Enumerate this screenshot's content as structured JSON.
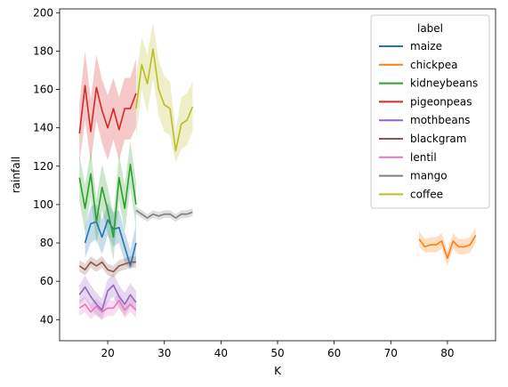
{
  "chart_data": {
    "type": "line",
    "xlabel": "K",
    "ylabel": "rainfall",
    "xlim": [
      11.5,
      88.5
    ],
    "ylim": [
      29,
      202
    ],
    "xticks": [
      20,
      30,
      40,
      50,
      60,
      70,
      80
    ],
    "yticks": [
      40,
      60,
      80,
      100,
      120,
      140,
      160,
      180,
      200
    ],
    "grid": false,
    "legend": {
      "title": "label",
      "placement": "top-right"
    },
    "series": [
      {
        "name": "maize",
        "color": "#1f77b4",
        "x": [
          16,
          17,
          18,
          19,
          20,
          21,
          22,
          23,
          24,
          25
        ],
        "y": [
          80,
          90,
          91,
          83,
          92,
          87,
          88,
          78,
          68,
          80
        ],
        "lo": [
          72,
          80,
          82,
          74,
          84,
          78,
          80,
          70,
          66,
          70
        ],
        "hi": [
          88,
          99,
          100,
          92,
          101,
          96,
          97,
          86,
          76,
          90
        ]
      },
      {
        "name": "chickpea",
        "color": "#ff7f0e",
        "x": [
          75,
          76,
          77,
          78,
          79,
          80,
          81,
          82,
          83,
          84,
          85
        ],
        "y": [
          82,
          78,
          79,
          79,
          81,
          72,
          81,
          78,
          78,
          79,
          84
        ],
        "lo": [
          78,
          75,
          75,
          75,
          77,
          68,
          77,
          74,
          74,
          75,
          80
        ],
        "hi": [
          86,
          82,
          83,
          83,
          85,
          76,
          85,
          82,
          82,
          83,
          88
        ]
      },
      {
        "name": "kidneybeans",
        "color": "#2ca02c",
        "x": [
          15,
          16,
          17,
          18,
          19,
          20,
          21,
          22,
          23,
          24,
          25
        ],
        "y": [
          114,
          98,
          116,
          91,
          109,
          97,
          83,
          114,
          98,
          121,
          100
        ],
        "lo": [
          102,
          86,
          104,
          79,
          97,
          85,
          71,
          102,
          86,
          109,
          88
        ],
        "hi": [
          126,
          110,
          128,
          103,
          121,
          109,
          95,
          126,
          110,
          133,
          112
        ]
      },
      {
        "name": "pigeonpeas",
        "color": "#d62728",
        "x": [
          15,
          16,
          17,
          18,
          19,
          20,
          21,
          22,
          23,
          24,
          25
        ],
        "y": [
          137,
          162,
          138,
          161,
          149,
          140,
          150,
          139,
          150,
          150,
          158
        ],
        "lo": [
          122,
          144,
          122,
          144,
          132,
          123,
          134,
          123,
          134,
          134,
          140
        ],
        "hi": [
          153,
          180,
          155,
          178,
          165,
          157,
          166,
          156,
          166,
          166,
          176
        ]
      },
      {
        "name": "mothbeans",
        "color": "#9467bd",
        "x": [
          15,
          16,
          17,
          18,
          19,
          20,
          21,
          22,
          23,
          24,
          25
        ],
        "y": [
          53,
          57,
          52,
          48,
          45,
          55,
          58,
          52,
          48,
          53,
          49
        ],
        "lo": [
          48,
          51,
          46,
          42,
          40,
          49,
          52,
          46,
          42,
          47,
          44
        ],
        "hi": [
          58,
          63,
          58,
          54,
          51,
          61,
          64,
          58,
          54,
          59,
          55
        ]
      },
      {
        "name": "blackgram",
        "color": "#8c564b",
        "x": [
          15,
          16,
          17,
          18,
          19,
          20,
          21,
          22,
          23,
          24,
          25
        ],
        "y": [
          68,
          66,
          70,
          68,
          70,
          66,
          65,
          68,
          69,
          70,
          70
        ],
        "lo": [
          65,
          63,
          67,
          65,
          67,
          63,
          62,
          65,
          66,
          67,
          67
        ],
        "hi": [
          71,
          69,
          73,
          71,
          73,
          69,
          68,
          71,
          72,
          73,
          73
        ]
      },
      {
        "name": "lentil",
        "color": "#e377c2",
        "x": [
          15,
          16,
          17,
          18,
          19,
          20,
          21,
          22,
          23,
          24,
          25
        ],
        "y": [
          46,
          48,
          44,
          47,
          44,
          46,
          46,
          50,
          45,
          48,
          45
        ],
        "lo": [
          42,
          44,
          40,
          43,
          40,
          42,
          42,
          46,
          41,
          44,
          41
        ],
        "hi": [
          50,
          52,
          48,
          51,
          48,
          50,
          50,
          54,
          49,
          52,
          49
        ]
      },
      {
        "name": "mango",
        "color": "#7f7f7f",
        "x": [
          25,
          26,
          27,
          28,
          29,
          30,
          31,
          32,
          33,
          34,
          35
        ],
        "y": [
          97,
          95,
          93,
          95,
          94,
          95,
          95,
          93,
          95,
          95,
          96
        ],
        "lo": [
          95,
          93,
          91,
          93,
          92,
          93,
          93,
          91,
          93,
          93,
          94
        ],
        "hi": [
          99,
          97,
          95,
          97,
          96,
          97,
          97,
          95,
          97,
          97,
          98
        ]
      },
      {
        "name": "coffee",
        "color": "#bcbd22",
        "x": [
          25,
          26,
          27,
          28,
          29,
          30,
          31,
          32,
          33,
          34,
          35
        ],
        "y": [
          150,
          173,
          163,
          181,
          160,
          152,
          150,
          128,
          142,
          144,
          151
        ],
        "lo": [
          135,
          160,
          148,
          166,
          146,
          138,
          136,
          122,
          129,
          131,
          138
        ],
        "hi": [
          167,
          187,
          178,
          195,
          175,
          167,
          164,
          138,
          156,
          158,
          164
        ]
      }
    ]
  }
}
